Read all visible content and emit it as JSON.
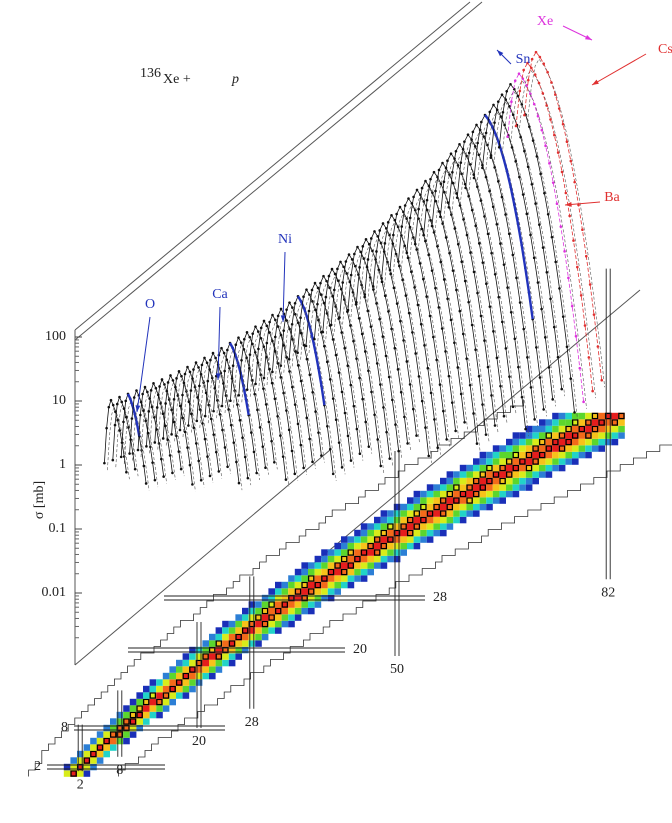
{
  "title": {
    "mass_number": "136",
    "element": "Xe +",
    "projectile": "p"
  },
  "y_axis": {
    "label": "σ [mb]",
    "ticks": [
      100,
      10,
      1,
      0.1,
      0.01
    ],
    "log_scale": true
  },
  "element_labels": [
    {
      "label": "O",
      "color": "#2233bb"
    },
    {
      "label": "Ca",
      "color": "#2233bb"
    },
    {
      "label": "Ni",
      "color": "#2233bb"
    },
    {
      "label": "Sn",
      "color": "#2233bb"
    },
    {
      "label": "Xe",
      "color": "#dd33dd"
    },
    {
      "label": "Cs",
      "color": "#e03030"
    },
    {
      "label": "Ba",
      "color": "#e03030"
    }
  ],
  "magic_numbers": {
    "N": [
      2,
      8,
      20,
      28,
      50,
      82
    ],
    "Z": [
      2,
      8,
      20,
      28
    ]
  }
}
